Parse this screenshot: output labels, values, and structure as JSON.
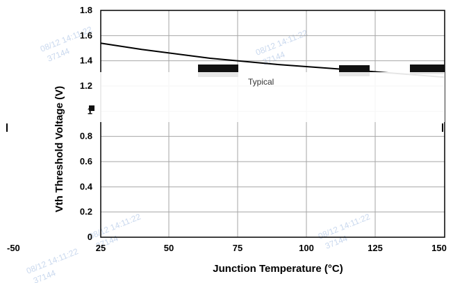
{
  "chart_data": {
    "type": "line",
    "xlabel": "Junction Temperature (°C)",
    "ylabel": "Vth Threshold Voltage (V)",
    "xlim": [
      -50,
      150
    ],
    "ylim": [
      0,
      1.8
    ],
    "x_ticks": [
      "-50",
      "25",
      "50",
      "75",
      "100",
      "125",
      "150"
    ],
    "y_ticks": [
      "0",
      "0.2",
      "0.4",
      "0.6",
      "0.8",
      "1",
      "1.2",
      "1.4",
      "1.6",
      "1.8"
    ],
    "grid": true,
    "series": [
      {
        "name": "",
        "x": [
          25,
          40,
          65,
          90,
          115,
          150
        ],
        "y": [
          1.54,
          1.49,
          1.42,
          1.37,
          1.33,
          1.27
        ],
        "color": "#000000"
      }
    ],
    "annotation": "Typical"
  },
  "watermark": {
    "date": "08/12 14:11:22",
    "code": "37144"
  }
}
